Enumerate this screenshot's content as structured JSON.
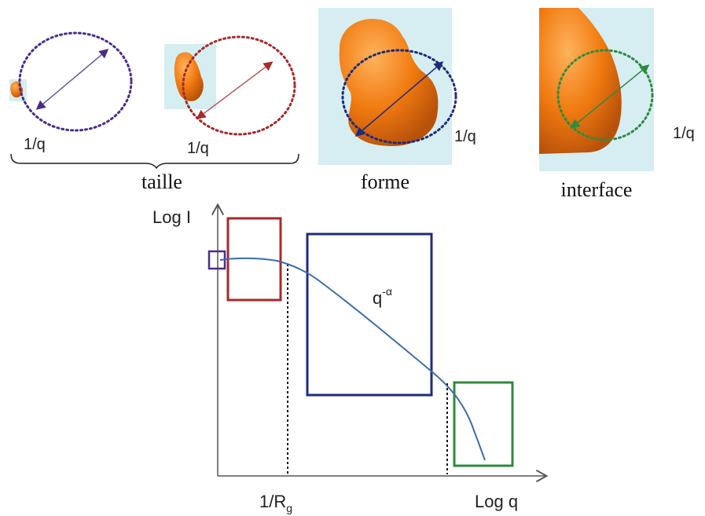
{
  "panels": {
    "taille": {
      "label": "taille",
      "q_label_1": "1/q",
      "q_label_2": "1/q"
    },
    "forme": {
      "label": "forme",
      "q_label": "1/q"
    },
    "interface": {
      "label": "interface",
      "q_label": "1/q"
    }
  },
  "plot": {
    "y_axis_label": "Log I",
    "x_axis_label": "Log q",
    "rg_tick_base": "1/R",
    "rg_tick_sub": "g",
    "slope_base": "q",
    "slope_exp": "-α"
  },
  "colors": {
    "particle": "#f07a10",
    "panel_bg": "#d6eef2",
    "purple": "#4a2d8a",
    "red": "#a52a2a",
    "navy": "#1f2b7a",
    "green": "#2e8b3e",
    "curve": "#3a6ea8"
  }
}
